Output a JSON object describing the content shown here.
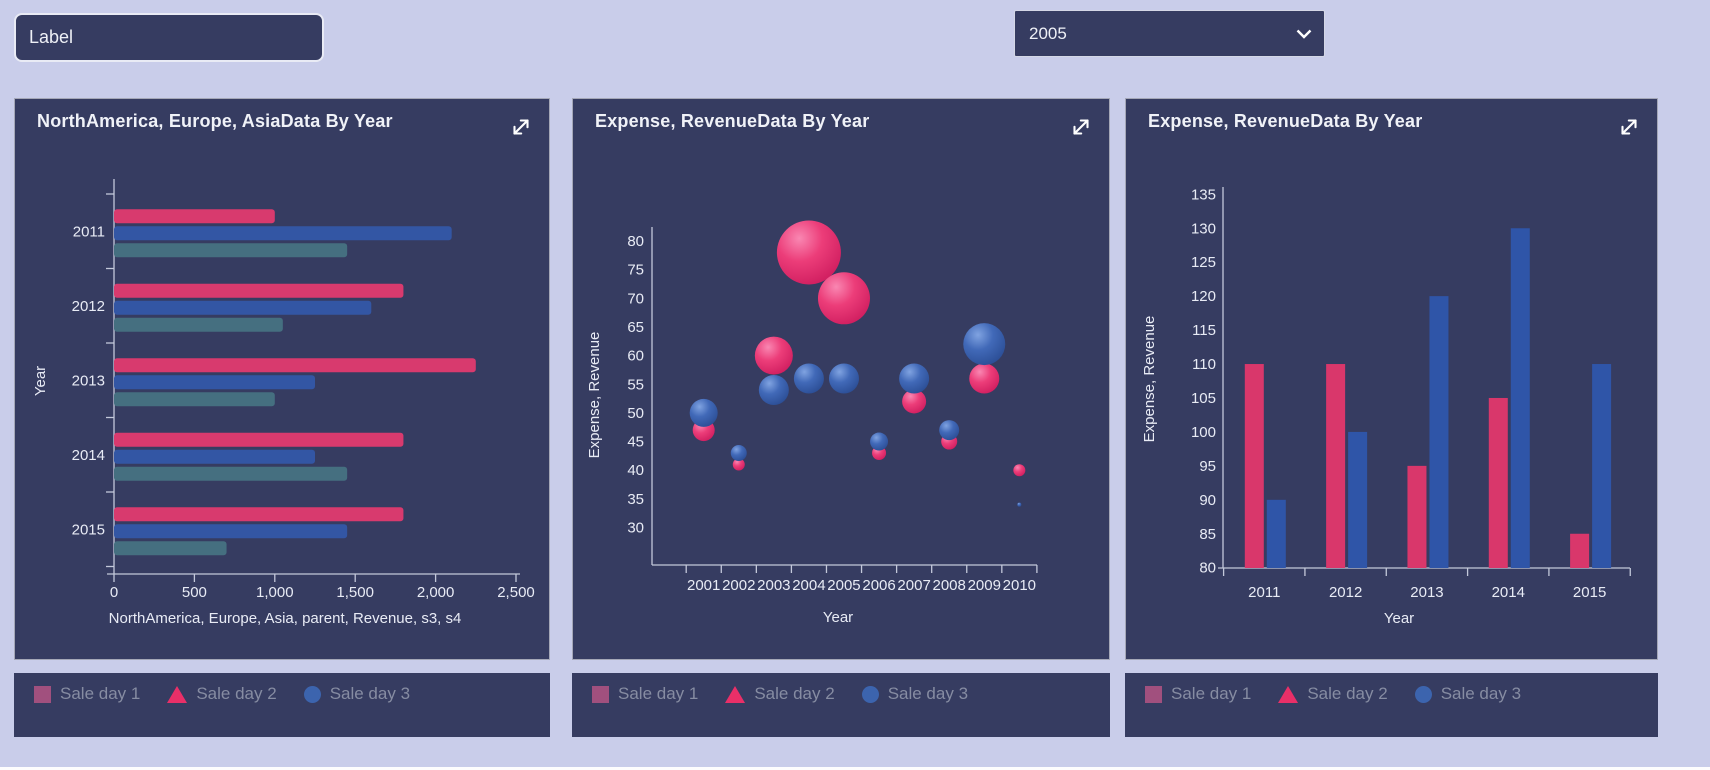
{
  "page": {
    "background": "#c9cdea",
    "card_background": "#363c61"
  },
  "toolbar": {
    "label_input": {
      "value": "Label"
    },
    "year_select": {
      "value": "2005"
    }
  },
  "legend": {
    "items": [
      {
        "label": "Sale day 1",
        "marker": "square",
        "color": "#a1507e"
      },
      {
        "label": "Sale day 2",
        "marker": "triangle",
        "color": "#e92f68"
      },
      {
        "label": "Sale day 3",
        "marker": "circle",
        "color": "#3c64ae"
      }
    ]
  },
  "chart_data": [
    {
      "type": "bar",
      "orientation": "horizontal",
      "title": "NorthAmerica, Europe, AsiaData By Year",
      "categories": [
        "2011",
        "2012",
        "2013",
        "2014",
        "2015"
      ],
      "series": [
        {
          "name": "pink",
          "color": "#d83a6e",
          "values": [
            1000,
            1800,
            2250,
            1800,
            1800
          ]
        },
        {
          "name": "blue",
          "color": "#3356a4",
          "values": [
            2100,
            1600,
            1250,
            1250,
            1450
          ]
        },
        {
          "name": "teal",
          "color": "#456f80",
          "values": [
            1450,
            1050,
            1000,
            1450,
            700
          ]
        }
      ],
      "xlabel": "NorthAmerica, Europe, Asia, parent, Revenue, s3, s4",
      "ylabel": "Year",
      "xlim": [
        0,
        2500
      ],
      "xticks": [
        0,
        500,
        1000,
        1500,
        2000,
        2500
      ],
      "xtick_labels": [
        "0",
        "500",
        "1,000",
        "1,500",
        "2,000",
        "2,500"
      ],
      "grid": false,
      "legend_position": "below-card"
    },
    {
      "type": "scatter",
      "subtype": "bubble",
      "title": "Expense, RevenueData By Year",
      "x": [
        2001,
        2002,
        2003,
        2004,
        2005,
        2006,
        2007,
        2008,
        2009,
        2010
      ],
      "series": [
        {
          "name": "pink",
          "gradient": "pink",
          "color": "#e9306a",
          "values": [
            47,
            41,
            60,
            78,
            70,
            43,
            52,
            45,
            56,
            40
          ],
          "radii": [
            11,
            6,
            19,
            32,
            26,
            7,
            12,
            8,
            15,
            6
          ]
        },
        {
          "name": "blue",
          "gradient": "blue",
          "color": "#3c64ae",
          "values": [
            50,
            43,
            54,
            56,
            56,
            45,
            56,
            47,
            62,
            34
          ],
          "radii": [
            14,
            8,
            15,
            15,
            15,
            9,
            15,
            10,
            21,
            2
          ]
        }
      ],
      "xlabel": "Year",
      "ylabel": "Expense, Revenue",
      "ylim": [
        30,
        80
      ],
      "yticks": [
        80,
        75,
        70,
        65,
        60,
        55,
        50,
        45,
        40,
        35,
        30
      ],
      "grid": false,
      "legend_position": "below-card"
    },
    {
      "type": "bar",
      "orientation": "vertical",
      "title": "Expense, RevenueData By Year",
      "categories": [
        "2011",
        "2012",
        "2013",
        "2014",
        "2015"
      ],
      "series": [
        {
          "name": "pink",
          "color": "#d9376b",
          "values": [
            110,
            110,
            95,
            105,
            85
          ]
        },
        {
          "name": "blue",
          "color": "#2f55a8",
          "values": [
            90,
            100,
            120,
            130,
            110
          ]
        }
      ],
      "xlabel": "Year",
      "ylabel": "Expense, Revenue",
      "ylim": [
        80,
        135
      ],
      "yticks": [
        135,
        130,
        125,
        120,
        115,
        110,
        105,
        100,
        95,
        90,
        85,
        80
      ],
      "grid": false,
      "legend_position": "below-card"
    }
  ]
}
